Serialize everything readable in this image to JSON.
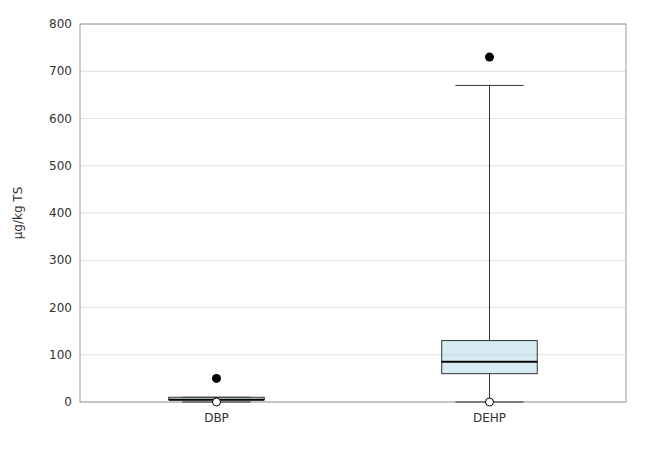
{
  "chart_data": {
    "type": "box",
    "categories": [
      "DBP",
      "DEHP"
    ],
    "q1": [
      5,
      60
    ],
    "q3": [
      10,
      130
    ],
    "median": [
      5,
      85
    ],
    "whisker_low": [
      0,
      0
    ],
    "whisker_high": [
      10,
      670
    ],
    "outliers_filled": [
      [
        50
      ],
      [
        730
      ]
    ],
    "outliers_open": [
      [
        0
      ],
      [
        0
      ]
    ],
    "ylabel": "µg/kg TS",
    "ylim": [
      0,
      800
    ],
    "yticks": [
      0,
      100,
      200,
      300,
      400,
      500,
      600,
      700,
      800
    ],
    "color": "#add8e6",
    "grid": true
  }
}
